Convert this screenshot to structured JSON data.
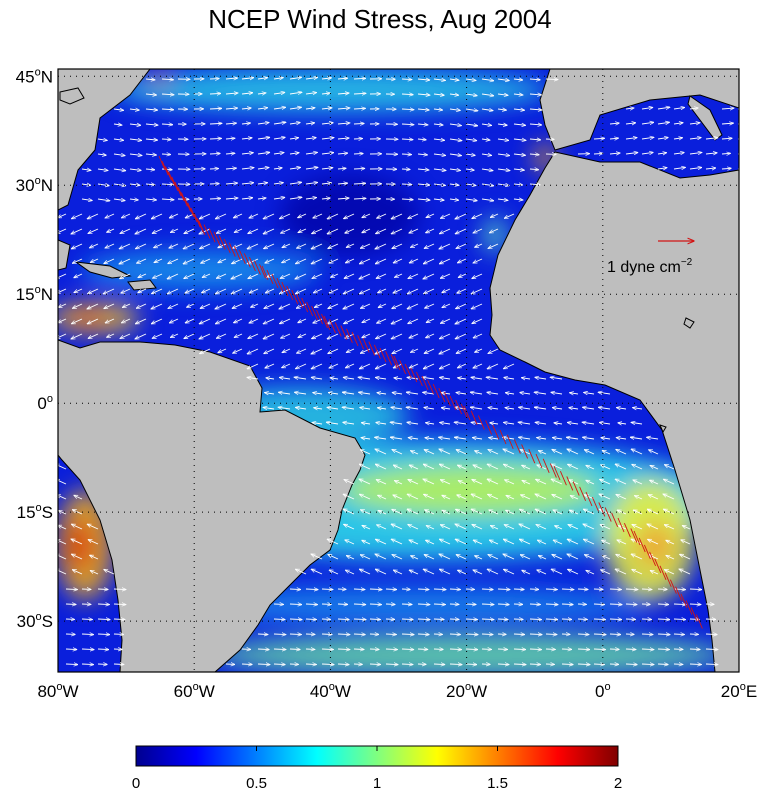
{
  "title": "NCEP Wind Stress, Aug 2004",
  "map": {
    "lon_range": [
      -80,
      20
    ],
    "lat_range": [
      -37,
      46
    ],
    "lon_ticks": [
      {
        "value": -80,
        "deg": "80",
        "hem": "W"
      },
      {
        "value": -60,
        "deg": "60",
        "hem": "W"
      },
      {
        "value": -40,
        "deg": "40",
        "hem": "W"
      },
      {
        "value": -20,
        "deg": "20",
        "hem": "W"
      },
      {
        "value": 0,
        "deg": "0",
        "hem": ""
      },
      {
        "value": 20,
        "deg": "20",
        "hem": "E"
      }
    ],
    "lat_ticks": [
      {
        "value": 45,
        "deg": "45",
        "hem": "N"
      },
      {
        "value": 30,
        "deg": "30",
        "hem": "N"
      },
      {
        "value": 15,
        "deg": "15",
        "hem": "N"
      },
      {
        "value": 0,
        "deg": "0",
        "hem": ""
      },
      {
        "value": -15,
        "deg": "15",
        "hem": "S"
      },
      {
        "value": -30,
        "deg": "30",
        "hem": "S"
      }
    ],
    "grid": "dotted",
    "land_color": "#bebebe",
    "vector_color": "#ffffff",
    "track_color": "#d21414",
    "reference_vector": {
      "label_base": "1 dyne cm",
      "label_exponent": "−2",
      "magnitude": 1,
      "position": "right-center"
    }
  },
  "colorbar": {
    "min": 0,
    "max": 2,
    "tick_values": [
      0,
      0.5,
      1,
      1.5,
      2
    ],
    "tick_labels": [
      "0",
      "0.5",
      "1",
      "1.5",
      "2"
    ],
    "colormap": "jet"
  }
}
